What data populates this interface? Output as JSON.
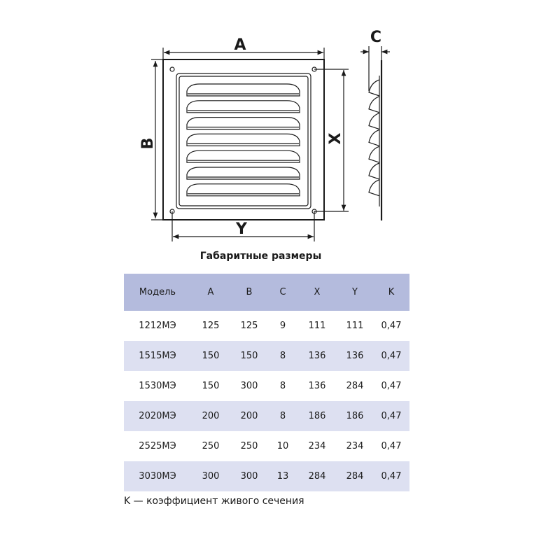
{
  "drawing": {
    "labels": {
      "A": "A",
      "B": "B",
      "C": "C",
      "X": "X",
      "Y": "Y"
    },
    "louver_count": 7
  },
  "title": "Габаритные размеры",
  "table": {
    "headers": [
      "Модель",
      "A",
      "B",
      "C",
      "X",
      "Y",
      "K"
    ],
    "rows": [
      [
        "1212МЭ",
        "125",
        "125",
        "9",
        "111",
        "111",
        "0,47"
      ],
      [
        "1515МЭ",
        "150",
        "150",
        "8",
        "136",
        "136",
        "0,47"
      ],
      [
        "1530МЭ",
        "150",
        "300",
        "8",
        "136",
        "284",
        "0,47"
      ],
      [
        "2020МЭ",
        "200",
        "200",
        "8",
        "186",
        "186",
        "0,47"
      ],
      [
        "2525МЭ",
        "250",
        "250",
        "10",
        "234",
        "234",
        "0,47"
      ],
      [
        "3030МЭ",
        "300",
        "300",
        "13",
        "284",
        "284",
        "0,47"
      ]
    ],
    "header_color": "#b4bbdd",
    "alt_row_color": "#dde0f1"
  },
  "footnote": "K — коэффициент живого сечения"
}
